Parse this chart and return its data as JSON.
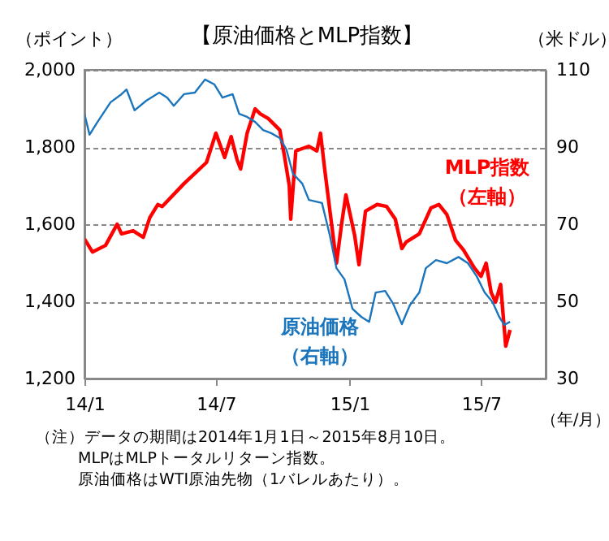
{
  "chart_data": {
    "type": "line",
    "title": "【原油価格とMLP指数】",
    "ylabel": "（ポイント）",
    "y2label": "（米ドル）",
    "xlabel": "（年/月）",
    "xlim": [
      "2014-01-01",
      "2015-09-28"
    ],
    "xticks": [
      {
        "value": "2014-01-01",
        "label": "14/1"
      },
      {
        "value": "2014-07-01",
        "label": "14/7"
      },
      {
        "value": "2015-01-01",
        "label": "15/1"
      },
      {
        "value": "2015-07-01",
        "label": "15/7"
      }
    ],
    "ylim": [
      1200,
      2000
    ],
    "yticks": [
      {
        "value": 1200,
        "label": "1,200"
      },
      {
        "value": 1400,
        "label": "1,400"
      },
      {
        "value": 1600,
        "label": "1,600"
      },
      {
        "value": 1800,
        "label": "1,800"
      },
      {
        "value": 2000,
        "label": "2,000"
      }
    ],
    "y2lim": [
      30,
      110
    ],
    "y2ticks": [
      30,
      50,
      70,
      90,
      110
    ],
    "grid": "y",
    "legend": false,
    "series": [
      {
        "name": "MLP指数（左軸）",
        "color": "#ff0000",
        "x": [
          "2014-01-01",
          "2014-01-12",
          "2014-01-30",
          "2014-02-15",
          "2014-02-21",
          "2014-03-09",
          "2014-03-23",
          "2014-04-01",
          "2014-04-12",
          "2014-04-18",
          "2014-05-18",
          "2014-06-18",
          "2014-07-01",
          "2014-07-13",
          "2014-07-22",
          "2014-07-30",
          "2014-08-04",
          "2014-08-13",
          "2014-08-24",
          "2014-08-31",
          "2014-09-11",
          "2014-09-27",
          "2014-10-03",
          "2014-10-10",
          "2014-10-12",
          "2014-10-19",
          "2014-11-06",
          "2014-11-17",
          "2014-11-22",
          "2014-11-28",
          "2014-12-05",
          "2014-12-14",
          "2014-12-21",
          "2014-12-27",
          "2015-01-08",
          "2015-01-14",
          "2015-01-23",
          "2015-02-08",
          "2015-02-21",
          "2015-03-05",
          "2015-03-14",
          "2015-03-20",
          "2015-04-07",
          "2015-04-23",
          "2015-05-04",
          "2015-05-15",
          "2015-05-27",
          "2015-06-07",
          "2015-06-22",
          "2015-07-01",
          "2015-07-08",
          "2015-07-15",
          "2015-07-21",
          "2015-07-28",
          "2015-08-04",
          "2015-08-10"
        ],
        "values": [
          1562,
          1528,
          1545,
          1600,
          1575,
          1583,
          1566,
          1617,
          1651,
          1646,
          1705,
          1760,
          1836,
          1773,
          1827,
          1768,
          1743,
          1836,
          1899,
          1886,
          1874,
          1844,
          1781,
          1700,
          1613,
          1790,
          1802,
          1790,
          1836,
          1739,
          1634,
          1499,
          1600,
          1676,
          1571,
          1495,
          1634,
          1651,
          1646,
          1613,
          1537,
          1554,
          1575,
          1642,
          1651,
          1625,
          1558,
          1533,
          1486,
          1465,
          1499,
          1423,
          1398,
          1444,
          1284,
          1326
        ]
      },
      {
        "name": "原油価格（右軸）",
        "color": "#1a75bc",
        "axis": "y2",
        "x": [
          "2014-01-01",
          "2014-01-08",
          "2014-01-19",
          "2014-02-06",
          "2014-02-21",
          "2014-02-28",
          "2014-03-11",
          "2014-03-27",
          "2014-04-14",
          "2014-04-25",
          "2014-05-04",
          "2014-05-18",
          "2014-06-02",
          "2014-06-16",
          "2014-06-29",
          "2014-07-10",
          "2014-07-24",
          "2014-08-02",
          "2014-08-13",
          "2014-08-24",
          "2014-09-04",
          "2014-09-15",
          "2014-09-27",
          "2014-10-06",
          "2014-10-15",
          "2014-10-28",
          "2014-11-06",
          "2014-11-24",
          "2014-12-05",
          "2014-12-14",
          "2014-12-25",
          "2015-01-05",
          "2015-01-17",
          "2015-01-28",
          "2015-02-06",
          "2015-02-19",
          "2015-03-02",
          "2015-03-14",
          "2015-03-25",
          "2015-04-07",
          "2015-04-16",
          "2015-04-30",
          "2015-05-15",
          "2015-05-31",
          "2015-06-13",
          "2015-06-25",
          "2015-07-06",
          "2015-07-17",
          "2015-07-26",
          "2015-08-02",
          "2015-08-10"
        ],
        "values": [
          98.6,
          93.2,
          96.5,
          101.6,
          103.7,
          104.9,
          99.5,
          102,
          104.1,
          102.8,
          100.7,
          103.7,
          104.1,
          107.5,
          106.2,
          102.8,
          103.7,
          98.6,
          97.8,
          96.5,
          94.4,
          93.6,
          92.3,
          89.4,
          83.1,
          80.5,
          76.3,
          75.5,
          67,
          58.6,
          55.7,
          48.1,
          46,
          44.7,
          52.3,
          52.7,
          49.4,
          44.1,
          49,
          52.3,
          58.6,
          60.7,
          59.9,
          61.5,
          59.9,
          56.5,
          52.3,
          49.8,
          46,
          43.9,
          44.7
        ]
      }
    ],
    "annotations": [
      "（注）データの期間は2014年1月1日～2015年8月10日。",
      "MLPはMLPトータルリターン指数。",
      "原油価格はWTI原油先物（1バレルあたり）。"
    ]
  }
}
